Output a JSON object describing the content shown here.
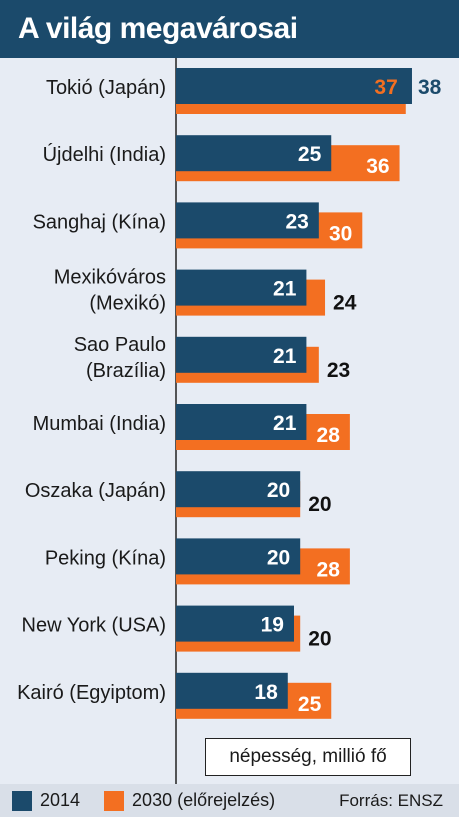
{
  "title": "A világ megavárosai",
  "unit_label": "népesség, millió fő",
  "source": "Forrás: ENSZ",
  "colors": {
    "series_2014": "#1b4a6b",
    "series_2030": "#f36f21",
    "header": "#1b4a6b",
    "background": "#e7ecf4"
  },
  "chart_data": {
    "type": "bar",
    "orientation": "horizontal",
    "title": "A világ megavárosai",
    "categories": [
      [
        "Tokió (Japán)"
      ],
      [
        "Újdelhi (India)"
      ],
      [
        "Sanghaj (Kína)"
      ],
      [
        "Mexikóváros",
        "(Mexikó)"
      ],
      [
        "Sao Paulo",
        "(Brazília)"
      ],
      [
        "Mumbai (India)"
      ],
      [
        "Oszaka (Japán)"
      ],
      [
        "Peking (Kína)"
      ],
      [
        "New York (USA)"
      ],
      [
        "Kairó (Egyiptom)"
      ]
    ],
    "series": [
      {
        "name": "2014",
        "values": [
          38,
          25,
          23,
          21,
          21,
          21,
          20,
          20,
          19,
          18
        ]
      },
      {
        "name": "2030 (előrejelzés)",
        "values": [
          37,
          36,
          30,
          24,
          23,
          28,
          20,
          28,
          20,
          25
        ]
      }
    ],
    "xlim": [
      0,
      38
    ],
    "grid": false,
    "legend_position": "bottom"
  }
}
